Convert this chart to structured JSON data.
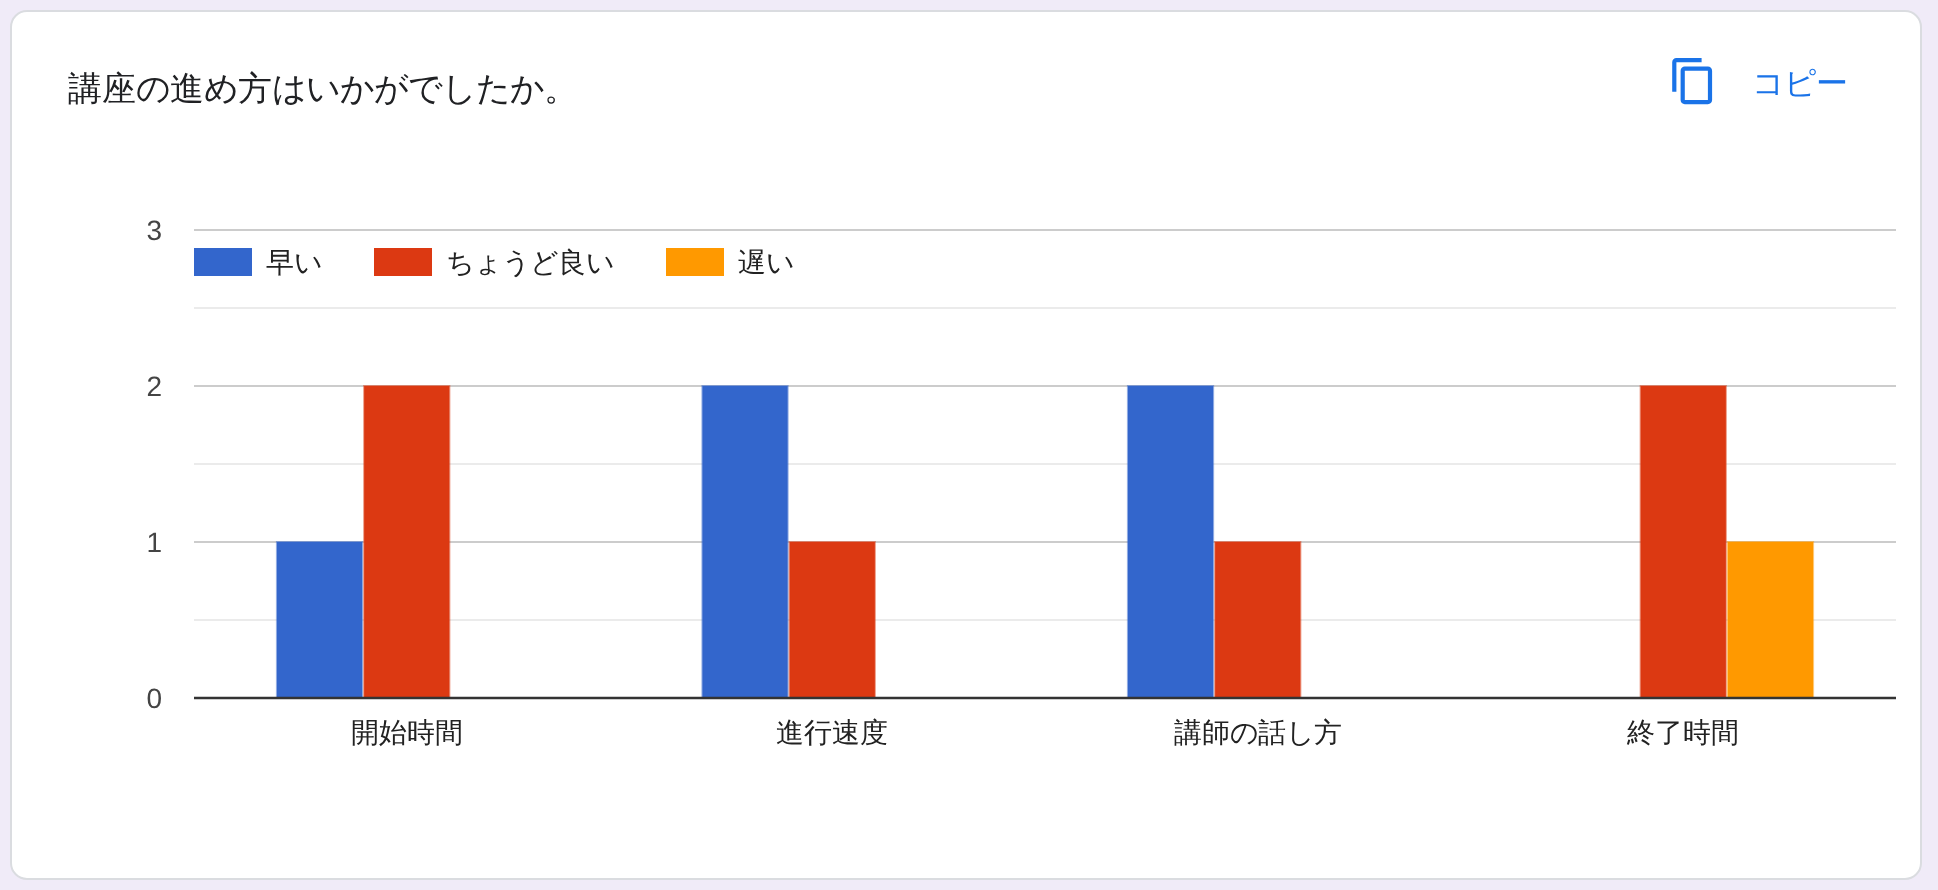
{
  "chart_data": {
    "type": "bar",
    "title": "講座の進め方はいかがでしたか。",
    "annotations": [
      "コピー"
    ],
    "categories": [
      "開始時間",
      "進行速度",
      "講師の話し方",
      "終了時間"
    ],
    "series": [
      {
        "name": "早い",
        "color": "#3366cc",
        "values": [
          1,
          2,
          2,
          0
        ]
      },
      {
        "name": "ちょうど良い",
        "color": "#dc3912",
        "values": [
          2,
          1,
          1,
          2
        ]
      },
      {
        "name": "遅い",
        "color": "#ff9900",
        "values": [
          0,
          0,
          0,
          1
        ]
      }
    ],
    "ylim": [
      0,
      3
    ],
    "yticks": [
      0,
      {
        "value": 0.5,
        "label": null
      },
      1,
      {
        "value": 1.5,
        "label": null
      },
      2,
      {
        "value": 2.5,
        "label": null
      },
      3
    ],
    "grid": "y",
    "legend": "top left"
  }
}
